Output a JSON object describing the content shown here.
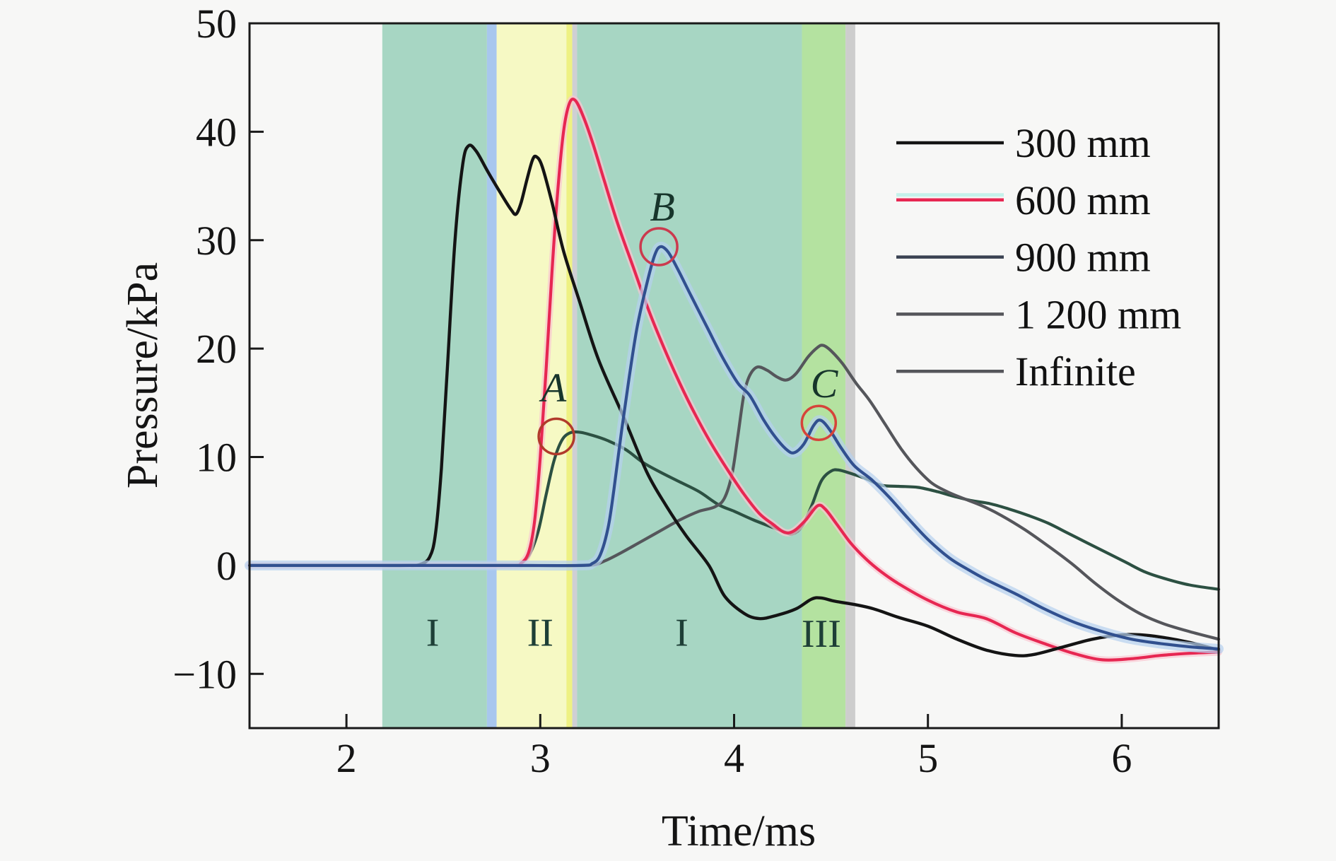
{
  "figure": {
    "background": "#f7f7f6",
    "frame_color": "#1a1a1a"
  },
  "chart_data": {
    "type": "line",
    "title": "",
    "xlabel": "Time/ms",
    "ylabel": "Pressure/kPa",
    "xlim": [
      1.5,
      6.5
    ],
    "ylim": [
      -15,
      50
    ],
    "grid": false,
    "x_ticks": {
      "values": [
        2,
        3,
        4,
        5,
        6
      ],
      "labels": [
        "2",
        "3",
        "4",
        "5",
        "6"
      ]
    },
    "y_ticks": {
      "values": [
        50,
        40,
        30,
        20,
        10,
        0,
        -10
      ],
      "labels": [
        "50",
        "40",
        "30",
        "20",
        "10",
        "0",
        "−10"
      ]
    },
    "regions": [
      {
        "name": "phase-I-first",
        "x0": 2.185,
        "x1": 2.725,
        "color": "#a7d6c3"
      },
      {
        "name": "blue-strip",
        "x0": 2.725,
        "x1": 2.775,
        "color": "#a8c7ee"
      },
      {
        "name": "phase-II",
        "x0": 2.775,
        "x1": 3.135,
        "color": "#f6f9c4"
      },
      {
        "name": "yellow-edge-strip",
        "x0": 3.135,
        "x1": 3.165,
        "color": "#eef182"
      },
      {
        "name": "gray-strip-1",
        "x0": 3.165,
        "x1": 3.19,
        "color": "#cfcfd4"
      },
      {
        "name": "phase-I-second",
        "x0": 3.19,
        "x1": 4.35,
        "color": "#a7d6c3"
      },
      {
        "name": "phase-III",
        "x0": 4.35,
        "x1": 4.575,
        "color": "#b4e2a0"
      },
      {
        "name": "gray-strip-2",
        "x0": 4.575,
        "x1": 4.625,
        "color": "#cdcdcd"
      }
    ],
    "region_labels": [
      {
        "text": "I",
        "t": 2.445,
        "p": -6.1
      },
      {
        "text": "II",
        "t": 3.0,
        "p": -6.1
      },
      {
        "text": "I",
        "t": 3.73,
        "p": -6.1
      },
      {
        "text": "III",
        "t": 4.45,
        "p": -6.2
      }
    ],
    "series": [
      {
        "name": "infinite",
        "label": "Infinite",
        "color": "#2c5042",
        "width": 4.2,
        "points": [
          [
            1.5,
            0
          ],
          [
            2.3,
            0
          ],
          [
            2.6,
            0
          ],
          [
            2.86,
            0
          ],
          [
            2.91,
            0.3
          ],
          [
            2.95,
            1.2
          ],
          [
            2.99,
            3.2
          ],
          [
            3.03,
            6.5
          ],
          [
            3.07,
            9.6
          ],
          [
            3.11,
            11.5
          ],
          [
            3.15,
            12.2
          ],
          [
            3.2,
            12.3
          ],
          [
            3.27,
            12.0
          ],
          [
            3.35,
            11.5
          ],
          [
            3.44,
            10.7
          ],
          [
            3.53,
            9.5
          ],
          [
            3.62,
            8.6
          ],
          [
            3.72,
            7.7
          ],
          [
            3.82,
            6.8
          ],
          [
            3.92,
            5.6
          ],
          [
            4.0,
            5.0
          ],
          [
            4.1,
            4.2
          ],
          [
            4.2,
            3.5
          ],
          [
            4.26,
            3.1
          ],
          [
            4.3,
            2.9
          ],
          [
            4.35,
            3.6
          ],
          [
            4.4,
            5.5
          ],
          [
            4.45,
            7.8
          ],
          [
            4.5,
            8.7
          ],
          [
            4.54,
            8.8
          ],
          [
            4.6,
            8.5
          ],
          [
            4.68,
            8.0
          ],
          [
            4.76,
            7.4
          ],
          [
            4.85,
            7.3
          ],
          [
            4.95,
            7.2
          ],
          [
            5.05,
            6.8
          ],
          [
            5.13,
            6.4
          ],
          [
            5.22,
            6.0
          ],
          [
            5.32,
            5.7
          ],
          [
            5.42,
            5.2
          ],
          [
            5.52,
            4.6
          ],
          [
            5.62,
            3.9
          ],
          [
            5.72,
            3.0
          ],
          [
            5.82,
            2.1
          ],
          [
            5.92,
            1.2
          ],
          [
            6.02,
            0.3
          ],
          [
            6.12,
            -0.6
          ],
          [
            6.22,
            -1.2
          ],
          [
            6.35,
            -1.8
          ],
          [
            6.5,
            -2.2
          ]
        ]
      },
      {
        "name": "d1200",
        "label": "1 200 mm",
        "color": "#55565b",
        "width": 4.2,
        "points": [
          [
            1.5,
            0
          ],
          [
            2.5,
            0
          ],
          [
            3.0,
            0
          ],
          [
            3.25,
            0
          ],
          [
            3.33,
            0.4
          ],
          [
            3.42,
            1.2
          ],
          [
            3.52,
            2.2
          ],
          [
            3.62,
            3.2
          ],
          [
            3.72,
            4.2
          ],
          [
            3.82,
            5.0
          ],
          [
            3.9,
            5.4
          ],
          [
            3.95,
            6.2
          ],
          [
            3.99,
            8.5
          ],
          [
            4.02,
            12
          ],
          [
            4.05,
            15.7
          ],
          [
            4.08,
            17.5
          ],
          [
            4.12,
            18.3
          ],
          [
            4.17,
            18.0
          ],
          [
            4.22,
            17.4
          ],
          [
            4.27,
            17.1
          ],
          [
            4.32,
            17.7
          ],
          [
            4.38,
            19.2
          ],
          [
            4.43,
            20.1
          ],
          [
            4.46,
            20.3
          ],
          [
            4.5,
            19.8
          ],
          [
            4.56,
            18.6
          ],
          [
            4.63,
            16.8
          ],
          [
            4.7,
            15.2
          ],
          [
            4.78,
            13.0
          ],
          [
            4.86,
            10.8
          ],
          [
            4.94,
            9.0
          ],
          [
            5.02,
            7.6
          ],
          [
            5.1,
            6.8
          ],
          [
            5.18,
            6.2
          ],
          [
            5.28,
            5.5
          ],
          [
            5.38,
            4.6
          ],
          [
            5.5,
            3.3
          ],
          [
            5.62,
            1.8
          ],
          [
            5.74,
            0.2
          ],
          [
            5.86,
            -1.6
          ],
          [
            5.98,
            -3.2
          ],
          [
            6.1,
            -4.5
          ],
          [
            6.22,
            -5.4
          ],
          [
            6.35,
            -6.1
          ],
          [
            6.5,
            -6.8
          ]
        ]
      },
      {
        "name": "d600",
        "label": "600 mm",
        "color": "#e72752",
        "glow": "#f9c6d2",
        "glow_width": 10,
        "width": 4.2,
        "points": [
          [
            1.5,
            0
          ],
          [
            2.2,
            0
          ],
          [
            2.5,
            0
          ],
          [
            2.85,
            0
          ],
          [
            2.9,
            0.2
          ],
          [
            2.94,
            1.2
          ],
          [
            2.97,
            4
          ],
          [
            3.0,
            10
          ],
          [
            3.03,
            18
          ],
          [
            3.06,
            27
          ],
          [
            3.09,
            34.5
          ],
          [
            3.12,
            40
          ],
          [
            3.15,
            42.6
          ],
          [
            3.18,
            42.9
          ],
          [
            3.22,
            41.5
          ],
          [
            3.27,
            39
          ],
          [
            3.33,
            35.5
          ],
          [
            3.4,
            31.5
          ],
          [
            3.48,
            27.5
          ],
          [
            3.56,
            23.5
          ],
          [
            3.64,
            20.0
          ],
          [
            3.72,
            16.8
          ],
          [
            3.8,
            13.9
          ],
          [
            3.88,
            11.3
          ],
          [
            3.96,
            9.0
          ],
          [
            4.05,
            6.6
          ],
          [
            4.13,
            4.8
          ],
          [
            4.2,
            3.8
          ],
          [
            4.26,
            3.05
          ],
          [
            4.31,
            3.2
          ],
          [
            4.37,
            4.2
          ],
          [
            4.43,
            5.5
          ],
          [
            4.47,
            5.2
          ],
          [
            4.53,
            3.8
          ],
          [
            4.6,
            2.1
          ],
          [
            4.68,
            0.6
          ],
          [
            4.76,
            -0.6
          ],
          [
            4.85,
            -1.7
          ],
          [
            5.0,
            -3.2
          ],
          [
            5.15,
            -4.3
          ],
          [
            5.3,
            -4.9
          ],
          [
            5.45,
            -6.2
          ],
          [
            5.6,
            -7.2
          ],
          [
            5.75,
            -8.1
          ],
          [
            5.9,
            -8.7
          ],
          [
            6.05,
            -8.6
          ],
          [
            6.2,
            -8.3
          ],
          [
            6.35,
            -8.1
          ],
          [
            6.5,
            -8.0
          ]
        ]
      },
      {
        "name": "d300",
        "label": "300 mm",
        "color": "#141414",
        "width": 4.4,
        "points": [
          [
            1.5,
            0
          ],
          [
            2.0,
            0
          ],
          [
            2.3,
            0
          ],
          [
            2.38,
            0.1
          ],
          [
            2.43,
            0.8
          ],
          [
            2.46,
            3
          ],
          [
            2.49,
            9
          ],
          [
            2.52,
            18
          ],
          [
            2.56,
            30
          ],
          [
            2.6,
            37
          ],
          [
            2.63,
            38.7
          ],
          [
            2.67,
            38.2
          ],
          [
            2.73,
            36.3
          ],
          [
            2.8,
            34.2
          ],
          [
            2.85,
            32.8
          ],
          [
            2.875,
            32.4
          ],
          [
            2.9,
            33.4
          ],
          [
            2.93,
            35.5
          ],
          [
            2.96,
            37.4
          ],
          [
            2.98,
            37.7
          ],
          [
            3.01,
            36.8
          ],
          [
            3.06,
            33.5
          ],
          [
            3.12,
            29
          ],
          [
            3.2,
            24.5
          ],
          [
            3.3,
            19
          ],
          [
            3.43,
            13.7
          ],
          [
            3.55,
            8.6
          ],
          [
            3.65,
            5.5
          ],
          [
            3.75,
            2.8
          ],
          [
            3.87,
            0
          ],
          [
            3.95,
            -2.8
          ],
          [
            4.05,
            -4.4
          ],
          [
            4.13,
            -4.9
          ],
          [
            4.22,
            -4.6
          ],
          [
            4.32,
            -4.0
          ],
          [
            4.4,
            -3.1
          ],
          [
            4.45,
            -3.0
          ],
          [
            4.52,
            -3.3
          ],
          [
            4.62,
            -3.6
          ],
          [
            4.72,
            -4.0
          ],
          [
            4.85,
            -4.8
          ],
          [
            5.0,
            -5.6
          ],
          [
            5.15,
            -6.8
          ],
          [
            5.3,
            -7.8
          ],
          [
            5.45,
            -8.3
          ],
          [
            5.55,
            -8.2
          ],
          [
            5.7,
            -7.5
          ],
          [
            5.85,
            -6.8
          ],
          [
            6.0,
            -6.4
          ],
          [
            6.1,
            -6.4
          ],
          [
            6.2,
            -6.6
          ],
          [
            6.35,
            -7.1
          ],
          [
            6.5,
            -7.8
          ]
        ]
      },
      {
        "name": "d900",
        "label": "900 mm",
        "color": "#31508f",
        "glow": "#b5d0f0",
        "glow_width": 14,
        "width": 4.2,
        "points": [
          [
            1.5,
            0
          ],
          [
            2.4,
            0
          ],
          [
            2.8,
            0
          ],
          [
            3.2,
            0
          ],
          [
            3.27,
            0.2
          ],
          [
            3.31,
            1
          ],
          [
            3.35,
            3.5
          ],
          [
            3.38,
            7
          ],
          [
            3.42,
            12.5
          ],
          [
            3.46,
            17.5
          ],
          [
            3.5,
            22
          ],
          [
            3.55,
            26
          ],
          [
            3.59,
            28.6
          ],
          [
            3.62,
            29.4
          ],
          [
            3.66,
            28.9
          ],
          [
            3.71,
            27.3
          ],
          [
            3.78,
            24.8
          ],
          [
            3.86,
            22
          ],
          [
            3.94,
            19.2
          ],
          [
            4.02,
            16.8
          ],
          [
            4.08,
            15.7
          ],
          [
            4.15,
            13.5
          ],
          [
            4.21,
            11.9
          ],
          [
            4.27,
            10.7
          ],
          [
            4.31,
            10.4
          ],
          [
            4.36,
            11.2
          ],
          [
            4.41,
            12.9
          ],
          [
            4.445,
            13.4
          ],
          [
            4.49,
            12.6
          ],
          [
            4.55,
            10.9
          ],
          [
            4.62,
            9.2
          ],
          [
            4.71,
            7.9
          ],
          [
            4.8,
            6.3
          ],
          [
            4.9,
            4.3
          ],
          [
            5.0,
            2.4
          ],
          [
            5.11,
            0.7
          ],
          [
            5.2,
            -0.3
          ],
          [
            5.3,
            -1.3
          ],
          [
            5.45,
            -2.6
          ],
          [
            5.6,
            -4.0
          ],
          [
            5.75,
            -5.2
          ],
          [
            5.9,
            -6.1
          ],
          [
            6.05,
            -6.8
          ],
          [
            6.2,
            -7.2
          ],
          [
            6.35,
            -7.5
          ],
          [
            6.5,
            -7.7
          ]
        ]
      }
    ],
    "annotations": [
      {
        "text": "A",
        "text_t": 3.07,
        "text_p": 16.3,
        "circle_t": 3.083,
        "circle_p": 11.9,
        "r": 25,
        "color": "#b13a2b"
      },
      {
        "text": "B",
        "text_t": 3.63,
        "text_p": 33.0,
        "circle_t": 3.612,
        "circle_p": 29.4,
        "r": 26,
        "color": "#cb3a4e"
      },
      {
        "text": "C",
        "text_t": 4.465,
        "text_p": 16.7,
        "circle_t": 4.437,
        "circle_p": 13.15,
        "r": 24,
        "color": "#d6443a"
      }
    ],
    "legend": {
      "position": "upper right",
      "entries": [
        {
          "label": "300 mm",
          "color": "#141414"
        },
        {
          "label": "600 mm",
          "color": "#e72752",
          "glow": "#b8f0e8"
        },
        {
          "label": "900 mm",
          "color": "#3a4252"
        },
        {
          "label": "1 200 mm",
          "color": "#55565b"
        },
        {
          "label": "Infinite",
          "color": "#55565b"
        }
      ]
    }
  }
}
